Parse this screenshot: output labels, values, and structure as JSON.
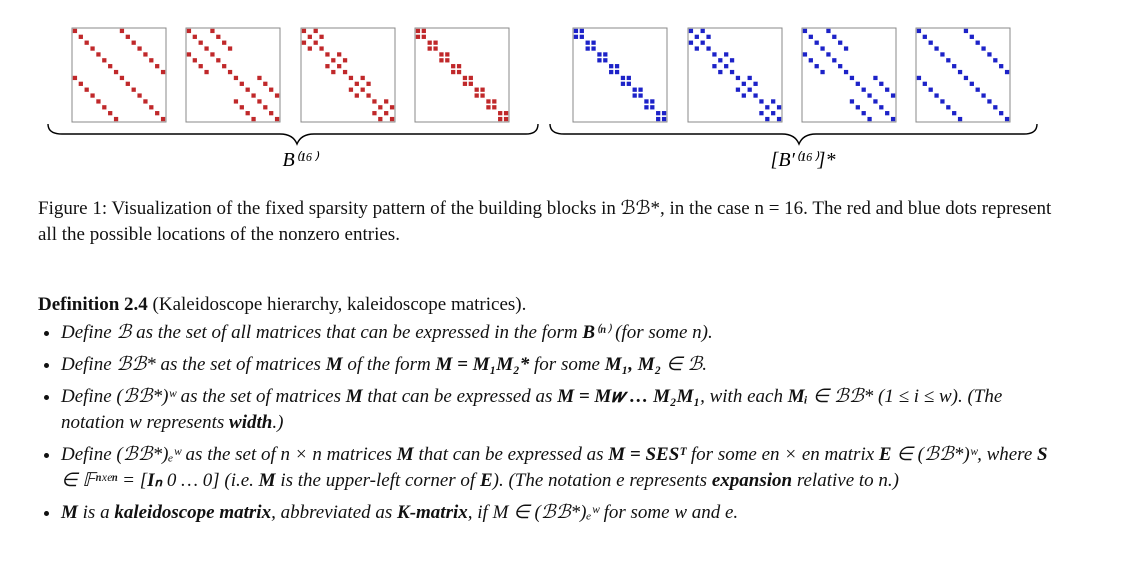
{
  "figure": {
    "label_left": "B⁽¹⁶⁾",
    "label_right": "[B′⁽¹⁶⁾]*",
    "caption": "Figure 1:  Visualization of the fixed sparsity pattern of the building blocks in ℬℬ*, in the case n = 16. The red and blue dots represent all the possible locations of the nonzero entries."
  },
  "definition": {
    "heading": "Definition 2.4",
    "subtitle": " (Kaleidoscope hierarchy, kaleidoscope matrices).",
    "items": [
      [
        "Define ℬ as the set of all matrices that can be expressed in the form ",
        "B",
        "⁽ⁿ⁾ (for some n)."
      ],
      [
        "Define ℬℬ* as the set of matrices ",
        "M",
        " of the form ",
        "M = M₁M₂*",
        " for some ",
        "M₁, M₂",
        " ∈ ℬ."
      ],
      [
        "Define (ℬℬ*)ʷ as the set of matrices ",
        "M",
        " that can be expressed as ",
        "M = M𝑤 … M₂M₁",
        ", with each ",
        "Mᵢ",
        " ∈ ℬℬ* (1 ≤ i ≤ w). (The notation w represents ",
        "width",
        ".)"
      ],
      [
        "Define (ℬℬ*)ₑʷ as the set of n × n matrices ",
        "M",
        " that can be expressed as ",
        "M = SESᵀ",
        " for some en × en matrix ",
        "E",
        " ∈ (ℬℬ*)ʷ, where ",
        "S",
        " ∈ 𝔽ⁿˣᵉⁿ = [",
        "Iₙ",
        "  0  …  0] (i.e. ",
        "M",
        " is the upper-left corner of ",
        "E",
        "). (The notation e represents ",
        "expansion",
        " relative to n.)"
      ],
      [
        "M",
        " is a ",
        "kaleidoscope matrix",
        ", abbreviated as ",
        "K-matrix",
        ", if M ∈ (ℬℬ*)ₑʷ for some w and e."
      ]
    ]
  }
}
